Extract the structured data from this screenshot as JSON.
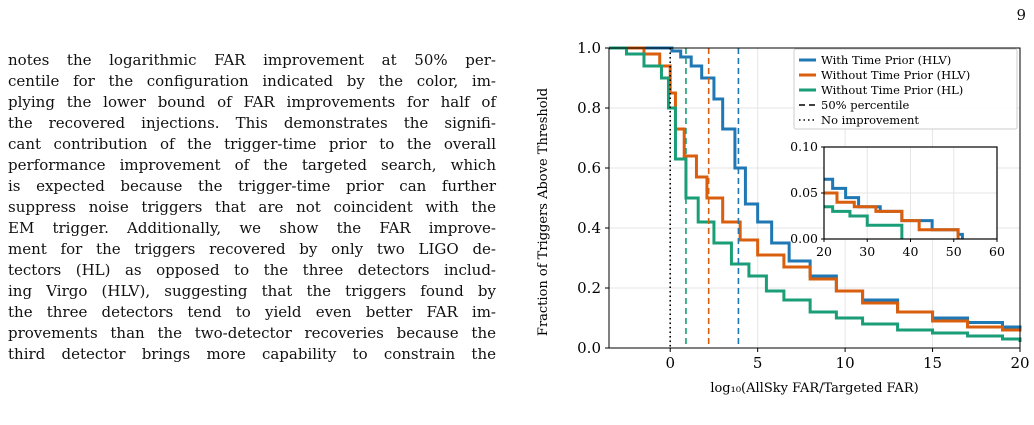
{
  "page": {
    "number": "9"
  },
  "text": {
    "lines": [
      "notes the logarithmic FAR improvement at 50% per-",
      "centile for the configuration indicated by the color, im-",
      "plying the lower bound of FAR improvements for half of",
      "the recovered injections. This demonstrates the signifi-",
      "cant contribution of the trigger-time prior to the overall",
      "performance improvement of the targeted search, which",
      "is expected because the trigger-time prior can further",
      "suppress noise triggers that are not coincident with the",
      "EM trigger. Additionally, we show the FAR improve-",
      "ment for the triggers recovered by only two LIGO de-",
      "tectors (HL) as opposed to the three detectors includ-",
      "ing Virgo (HLV), suggesting that the triggers found by",
      "the three detectors tend to yield even better FAR im-",
      "provements than the two-detector recoveries because the",
      "third detector brings more capability to constrain the"
    ]
  },
  "colors": {
    "blue": "#1f77b4",
    "orange": "#d95f0e",
    "green": "#1a9e77",
    "black": "#000000"
  },
  "chart_data": {
    "type": "line",
    "xlabel": "log₁₀(AllSky FAR/Targeted FAR)",
    "ylabel": "Fraction of Triggers Above Threshold",
    "xlim": [
      -3.5,
      20
    ],
    "ylim": [
      0,
      1.0
    ],
    "xticks": [
      "0",
      "5",
      "10",
      "15",
      "20"
    ],
    "yticks": [
      "0.0",
      "0.2",
      "0.4",
      "0.6",
      "0.8",
      "1.0"
    ],
    "grid": true,
    "legend_position": "top-right",
    "legend": [
      {
        "label": "With Time Prior (HLV)",
        "style": "solid",
        "color": "blue"
      },
      {
        "label": "Without Time Prior (HLV)",
        "style": "solid",
        "color": "orange"
      },
      {
        "label": "Without Time Prior (HL)",
        "style": "solid",
        "color": "green"
      },
      {
        "label": "50% percentile",
        "style": "dashed",
        "color": "black"
      },
      {
        "label": "No improvement",
        "style": "dotted",
        "color": "black"
      }
    ],
    "series": [
      {
        "name": "With Time Prior (HLV)",
        "color": "blue",
        "x": [
          -2.5,
          -0.8,
          0.1,
          0.6,
          1.2,
          1.8,
          2.5,
          3.0,
          3.7,
          4.3,
          5.0,
          5.8,
          6.8,
          8.0,
          9.5,
          11.0,
          13.0,
          15.0,
          17.0,
          19.0,
          20.0
        ],
        "y": [
          1.0,
          1.0,
          0.99,
          0.97,
          0.94,
          0.9,
          0.83,
          0.73,
          0.6,
          0.48,
          0.42,
          0.35,
          0.29,
          0.24,
          0.19,
          0.16,
          0.12,
          0.1,
          0.085,
          0.07,
          0.065
        ]
      },
      {
        "name": "Without Time Prior (HLV)",
        "color": "orange",
        "x": [
          -3.0,
          -1.5,
          -0.6,
          0.0,
          0.3,
          0.8,
          1.5,
          2.1,
          3.0,
          4.0,
          5.0,
          6.5,
          8.0,
          9.5,
          11.0,
          13.0,
          15.0,
          17.0,
          19.0,
          20.0
        ],
        "y": [
          1.0,
          0.98,
          0.94,
          0.85,
          0.73,
          0.64,
          0.57,
          0.5,
          0.42,
          0.36,
          0.31,
          0.27,
          0.23,
          0.19,
          0.15,
          0.12,
          0.09,
          0.07,
          0.06,
          0.055
        ]
      },
      {
        "name": "Without Time Prior (HL)",
        "color": "green",
        "x": [
          -3.5,
          -2.5,
          -1.5,
          -0.5,
          -0.1,
          0.3,
          0.9,
          1.6,
          2.5,
          3.5,
          4.5,
          5.5,
          6.5,
          8.0,
          9.5,
          11.0,
          13.0,
          15.0,
          17.0,
          19.0,
          20.0
        ],
        "y": [
          1.0,
          0.98,
          0.94,
          0.9,
          0.8,
          0.63,
          0.5,
          0.42,
          0.35,
          0.28,
          0.24,
          0.19,
          0.16,
          0.12,
          0.1,
          0.08,
          0.06,
          0.05,
          0.04,
          0.03,
          0.02
        ]
      }
    ],
    "vlines": [
      {
        "x": 3.9,
        "style": "dashed",
        "color": "blue"
      },
      {
        "x": 2.2,
        "style": "dashed",
        "color": "orange"
      },
      {
        "x": 0.9,
        "style": "dashed",
        "color": "green"
      },
      {
        "x": 0.0,
        "style": "dotted",
        "color": "black"
      }
    ],
    "inset": {
      "xlim": [
        20,
        60
      ],
      "ylim": [
        0,
        0.1
      ],
      "xticks": [
        "20",
        "30",
        "40",
        "50",
        "60"
      ],
      "yticks": [
        "0.00",
        "0.05",
        "0.10"
      ],
      "series": [
        {
          "color": "blue",
          "x": [
            20,
            22,
            25,
            28,
            33,
            38,
            45,
            50,
            51,
            52
          ],
          "y": [
            0.065,
            0.055,
            0.045,
            0.035,
            0.03,
            0.02,
            0.01,
            0.01,
            0.005,
            0.0
          ]
        },
        {
          "color": "orange",
          "x": [
            20,
            23,
            27,
            32,
            38,
            42,
            50,
            51
          ],
          "y": [
            0.05,
            0.04,
            0.035,
            0.03,
            0.02,
            0.01,
            0.01,
            0.0
          ]
        },
        {
          "color": "green",
          "x": [
            20,
            22,
            26,
            30,
            36,
            38
          ],
          "y": [
            0.035,
            0.03,
            0.025,
            0.015,
            0.015,
            0.0
          ]
        }
      ]
    }
  }
}
